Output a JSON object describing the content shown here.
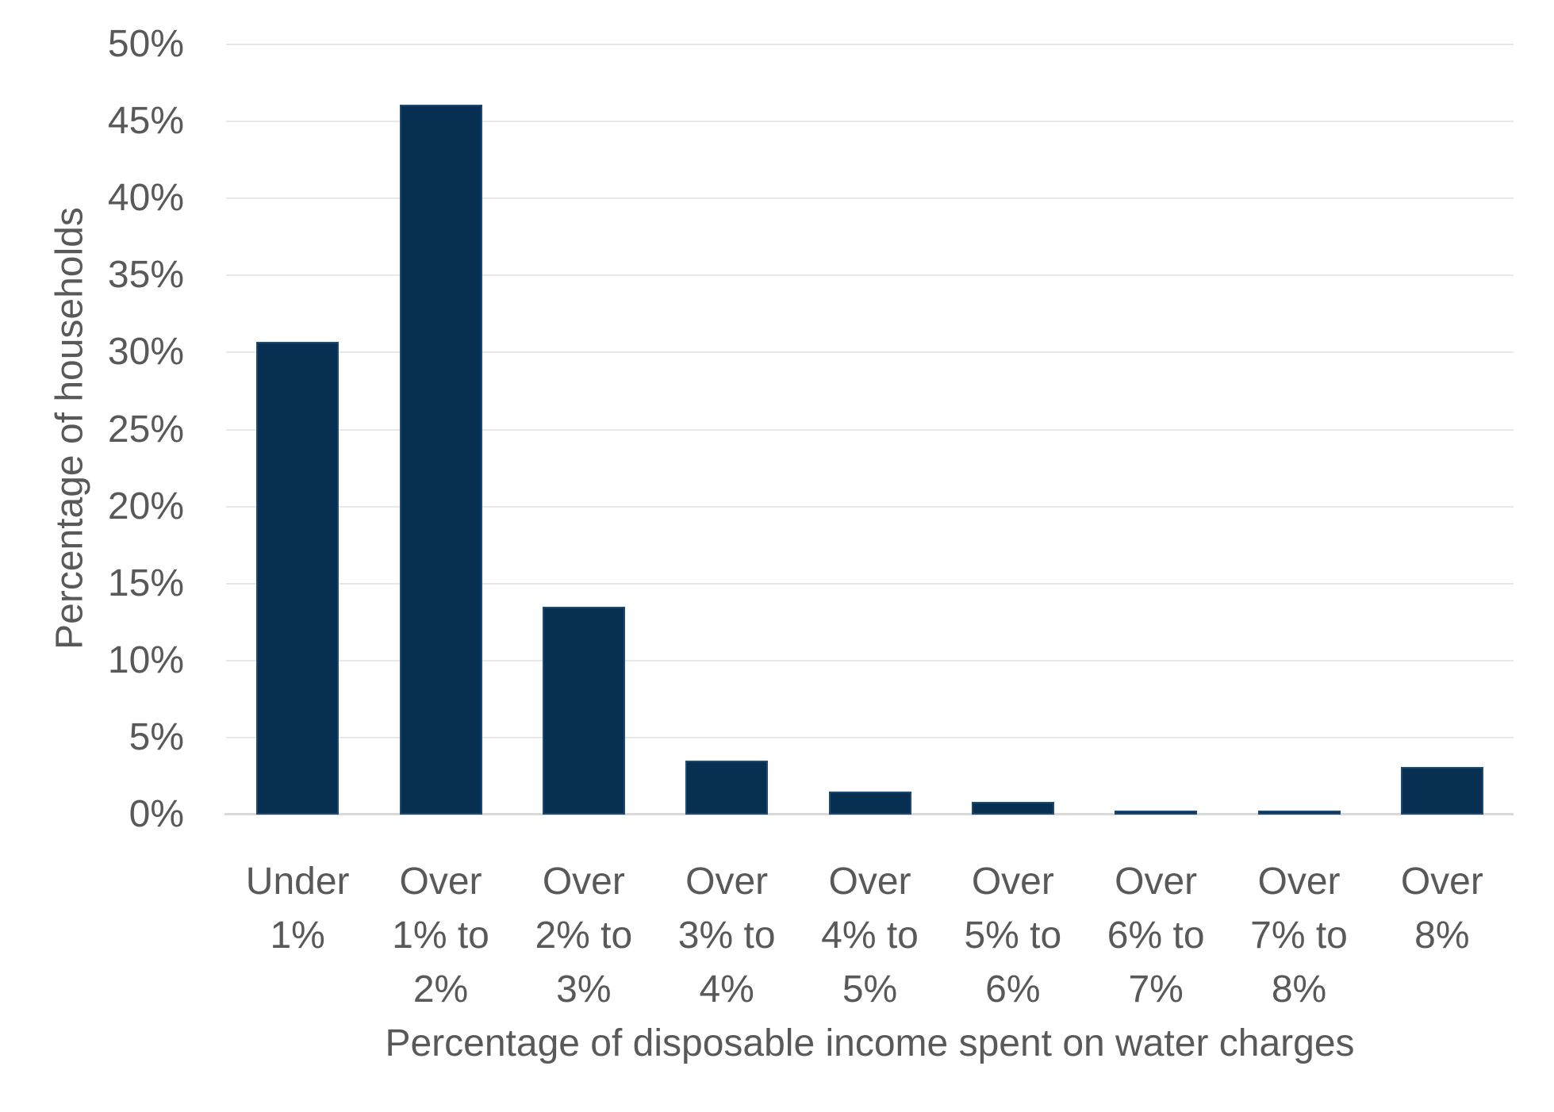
{
  "chart_data": {
    "type": "bar",
    "title": "",
    "xlabel": "Percentage of disposable income spent on water charges",
    "ylabel": "Percentage of households",
    "categories": [
      "Under 1%",
      "Over 1% to 2%",
      "Over 2% to 3%",
      "Over 3% to 4%",
      "Over 4% to 5%",
      "Over 5% to 6%",
      "Over 6% to 7%",
      "Over 7% to 8%",
      "Over 8%"
    ],
    "values": [
      30.7,
      46.1,
      13.5,
      3.5,
      1.5,
      0.8,
      0.25,
      0.25,
      3.1
    ],
    "ylim": [
      0,
      50
    ],
    "ytick_step": 5,
    "ytick_labels": [
      "0%",
      "5%",
      "10%",
      "15%",
      "20%",
      "25%",
      "30%",
      "35%",
      "40%",
      "45%",
      "50%"
    ],
    "grid": true,
    "legend_position": "none",
    "colors": {
      "bar_fill": "#062f51",
      "bar_border": "#1d4a72",
      "gridline": "#e8e8e8",
      "axis_line": "#d9d9d9",
      "text": "#595959",
      "background": "#ffffff"
    }
  }
}
